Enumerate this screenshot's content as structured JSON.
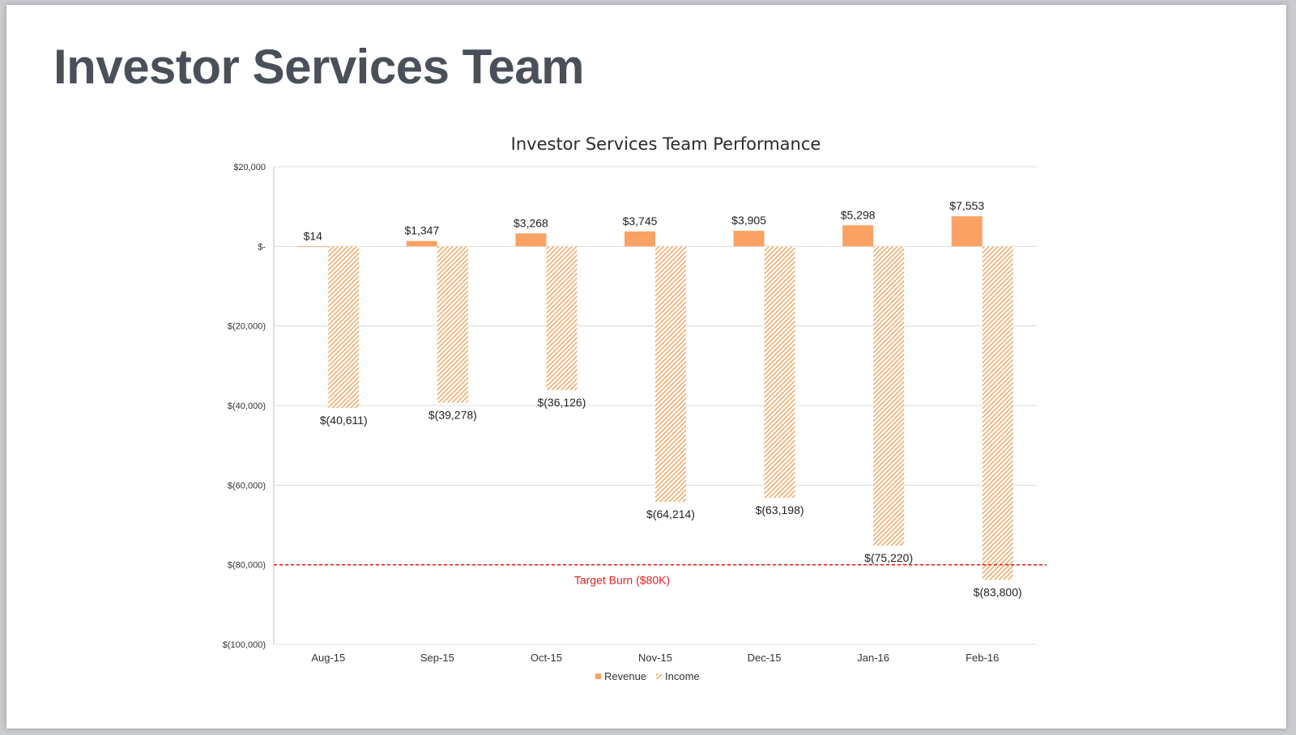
{
  "slide": {
    "title": "Investor Services Team"
  },
  "colors": {
    "revenue": "#f9a263",
    "income_stripe": "#f29a4f",
    "target_line": "#e02020",
    "grid": "#dcdcdc"
  },
  "chart_data": {
    "type": "bar",
    "title": "Investor Services Team Performance",
    "categories": [
      "Aug-15",
      "Sep-15",
      "Oct-15",
      "Nov-15",
      "Dec-15",
      "Jan-16",
      "Feb-16"
    ],
    "series": [
      {
        "name": "Revenue",
        "values": [
          14,
          1347,
          3268,
          3745,
          3905,
          5298,
          7553
        ],
        "labels": [
          "$14",
          "$1,347",
          "$3,268",
          "$3,745",
          "$3,905",
          "$5,298",
          "$7,553"
        ]
      },
      {
        "name": "Income",
        "values": [
          -40611,
          -39278,
          -36126,
          -64214,
          -63198,
          -75220,
          -83800
        ],
        "labels": [
          "$(40,611)",
          "$(39,278)",
          "$(36,126)",
          "$(64,214)",
          "$(63,198)",
          "$(75,220)",
          "$(83,800)"
        ]
      }
    ],
    "ylim": [
      -100000,
      20000
    ],
    "yticks": [
      20000,
      0,
      -20000,
      -40000,
      -60000,
      -80000,
      -100000
    ],
    "ytick_labels": [
      "$20,000",
      "$-",
      "$(20,000)",
      "$(40,000)",
      "$(60,000)",
      "$(80,000)",
      "$(100,000)"
    ],
    "reference_line": {
      "value": -80000,
      "label": "Target Burn ($80K)",
      "style": "dashed"
    },
    "legend": {
      "position": "bottom",
      "entries": [
        "Revenue",
        "Income"
      ]
    },
    "grid": true,
    "xlabel": "",
    "ylabel": ""
  }
}
